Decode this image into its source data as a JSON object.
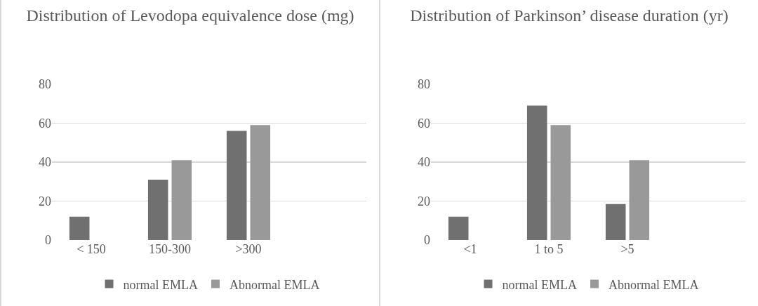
{
  "chart_data": [
    {
      "type": "bar",
      "title": "Distribution of Levodopa equivalence dose (mg)",
      "categories": [
        "< 150",
        "150-300",
        ">300",
        null
      ],
      "series": [
        {
          "name": "normal EMLA",
          "color": "#707070",
          "values": [
            12,
            31,
            56,
            null
          ]
        },
        {
          "name": "Abnormal EMLA",
          "color": "#999999",
          "values": [
            0,
            41,
            59,
            null
          ]
        }
      ],
      "ylim": [
        0,
        80
      ],
      "yticks": [
        0,
        20,
        40,
        60,
        80
      ],
      "grid": "y",
      "legend": "bottom"
    },
    {
      "type": "bar",
      "title": "Distribution of Parkinson’ disease duration (yr)",
      "categories": [
        "<1",
        "1 to 5",
        ">5",
        null
      ],
      "series": [
        {
          "name": "normal EMLA",
          "color": "#707070",
          "values": [
            12,
            69,
            18.5,
            null
          ]
        },
        {
          "name": "Abnormal EMLA",
          "color": "#999999",
          "values": [
            0,
            59,
            41,
            null
          ]
        }
      ],
      "ylim": [
        0,
        80
      ],
      "yticks": [
        0,
        20,
        40,
        60,
        80
      ],
      "grid": "y",
      "legend": "bottom"
    }
  ]
}
